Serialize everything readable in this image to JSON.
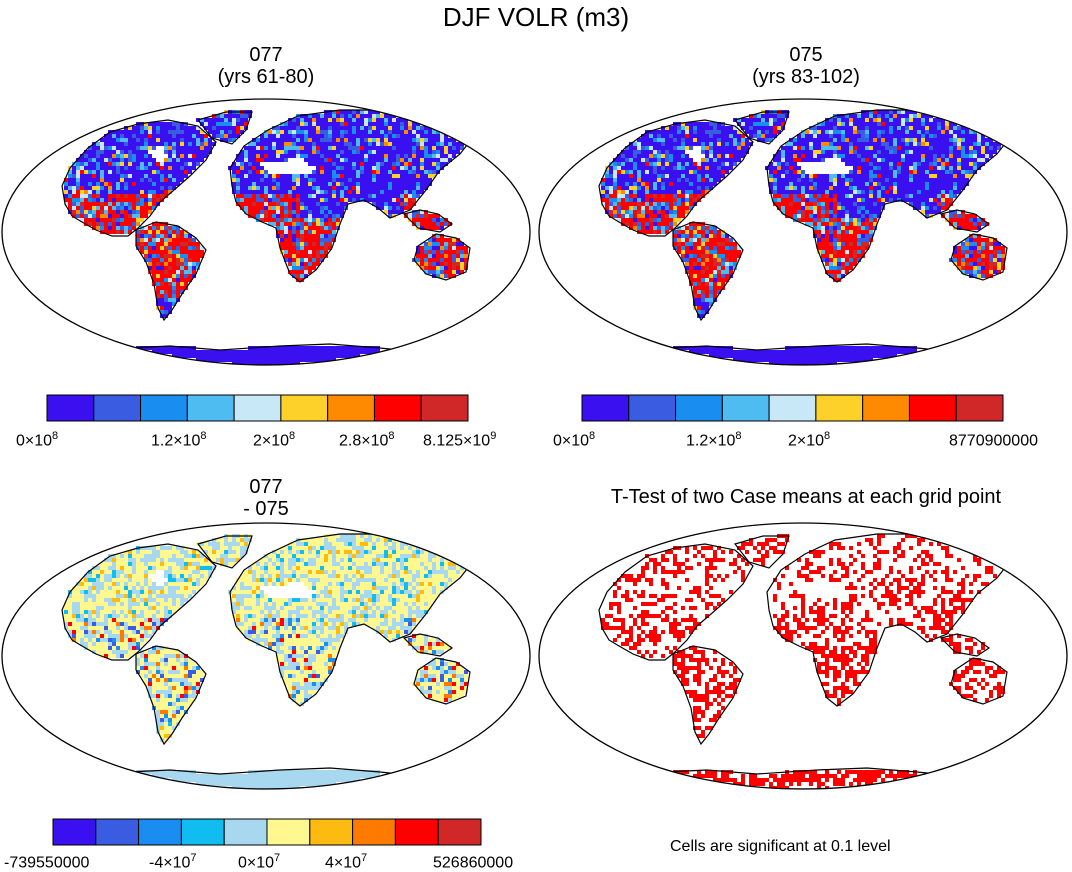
{
  "title": "DJF VOLR (m3)",
  "colors": {
    "ocean": "#ffffff",
    "outline": "#000000",
    "sig": "#ff0000",
    "pal_a": [
      "#3a10f0",
      "#3a5ce0",
      "#1a8ef0",
      "#4ebcf0",
      "#c8e8f8",
      "#fdd02a",
      "#fd8a00",
      "#ff0000",
      "#d02828"
    ],
    "pal_b": [
      "#3a10f0",
      "#3a5ce0",
      "#1a8ef0",
      "#10bcf0",
      "#a8d8f0",
      "#fff890",
      "#fdba10",
      "#fd7a00",
      "#ff0000",
      "#d02828"
    ]
  },
  "panels": [
    {
      "id": "p077",
      "title_line1": "077",
      "title_line2": "(yrs 61-80)"
    },
    {
      "id": "p075",
      "title_line1": "075",
      "title_line2": "(yrs 83-102)"
    },
    {
      "id": "pdiff",
      "title_line1": "077",
      "title_line2": "- 075"
    },
    {
      "id": "pttest",
      "title_line1": "T-Test of two Case means at each grid point",
      "note": "Cells are significant at 0.1 level"
    }
  ],
  "colorbars": [
    {
      "labels": [
        {
          "base": "0×10",
          "exp": "8"
        },
        {
          "base": "1.2×10",
          "exp": "8"
        },
        {
          "base": "2×10",
          "exp": "8"
        },
        {
          "base": "2.8×10",
          "exp": "8"
        },
        {
          "base": "8.125×10",
          "exp": "9"
        }
      ]
    },
    {
      "labels": [
        {
          "base": "0×10",
          "exp": "8"
        },
        {
          "base": "1.2×10",
          "exp": "8"
        },
        {
          "base": "2×10",
          "exp": "8"
        },
        {
          "base": "8770900000",
          "exp": ""
        }
      ]
    },
    {
      "labels": [
        {
          "base": "-739550000",
          "exp": ""
        },
        {
          "base": "-4×10",
          "exp": "7"
        },
        {
          "base": "0×10",
          "exp": "7"
        },
        {
          "base": "4×10",
          "exp": "7"
        },
        {
          "base": "526860000",
          "exp": ""
        }
      ]
    }
  ],
  "chart_data": [
    {
      "type": "heatmap",
      "title": "077 (yrs 61-80)",
      "projection": "Robinson",
      "variable": "DJF VOLR",
      "units": "m3",
      "levels": [
        "0×10^8",
        "1.2×10^8",
        "2×10^8",
        "2.8×10^8",
        "8.125×10^9"
      ]
    },
    {
      "type": "heatmap",
      "title": "075 (yrs 83-102)",
      "projection": "Robinson",
      "variable": "DJF VOLR",
      "units": "m3",
      "levels": [
        "0×10^8",
        "1.2×10^8",
        "2×10^8",
        "8770900000"
      ]
    },
    {
      "type": "heatmap",
      "title": "077 - 075",
      "projection": "Robinson",
      "variable": "DJF VOLR difference",
      "units": "m3",
      "levels": [
        "-739550000",
        "-4×10^7",
        "0×10^7",
        "4×10^7",
        "526860000"
      ]
    },
    {
      "type": "heatmap",
      "title": "T-Test of two Case means at each grid point",
      "projection": "Robinson",
      "significance_level": "0.1"
    }
  ]
}
